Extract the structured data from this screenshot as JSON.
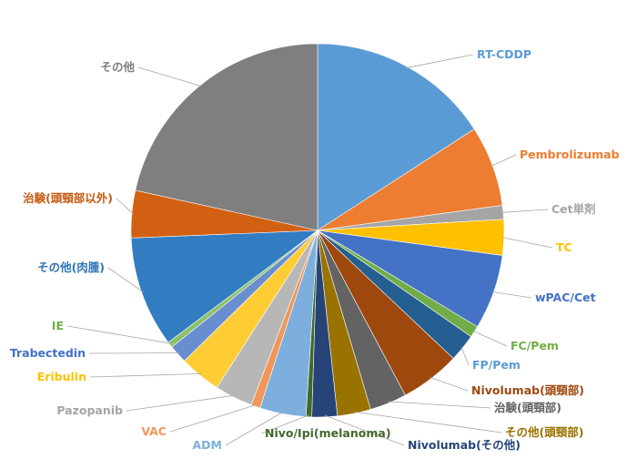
{
  "chart_data": {
    "type": "pie",
    "title": "",
    "legend": "none",
    "slices": [
      {
        "label": "RT-CDDP",
        "value": 15.9,
        "color": "#5b9bd5",
        "label_color": "#5b9bd5"
      },
      {
        "label": "Pembrolizumab",
        "value": 7.0,
        "color": "#ed7d31",
        "label_color": "#ed7d31"
      },
      {
        "label": "Cet単剤",
        "value": 1.2,
        "color": "#a5a5a5",
        "label_color": "#a5a5a5"
      },
      {
        "label": "TC",
        "value": 3.1,
        "color": "#ffc000",
        "label_color": "#ffc000"
      },
      {
        "label": "wPAC/Cet",
        "value": 6.5,
        "color": "#4472c4",
        "label_color": "#4472c4"
      },
      {
        "label": "FC/Pem",
        "value": 1.0,
        "color": "#70ad47",
        "label_color": "#70ad47"
      },
      {
        "label": "FP/Pem",
        "value": 2.4,
        "color": "#255e91",
        "label_color": "#5b9bd5"
      },
      {
        "label": "Nivolumab(頭頸部)",
        "value": 5.2,
        "color": "#9e480e",
        "label_color": "#9e480e"
      },
      {
        "label": "治験(頭頸部)",
        "value": 3.2,
        "color": "#636363",
        "label_color": "#636363"
      },
      {
        "label": "その他(頭頸部)",
        "value": 2.9,
        "color": "#997300",
        "label_color": "#997300"
      },
      {
        "label": "Nivolumab(その他)",
        "value": 2.2,
        "color": "#264478",
        "label_color": "#264478"
      },
      {
        "label": "Nivo/Ipi(melanoma)",
        "value": 0.5,
        "color": "#43682b",
        "label_color": "#43682b"
      },
      {
        "label": "ADM",
        "value": 4.0,
        "color": "#7cafdd",
        "label_color": "#7cafdd"
      },
      {
        "label": "VAC",
        "value": 0.8,
        "color": "#f1975a",
        "label_color": "#f1975a"
      },
      {
        "label": "Pazopanib",
        "value": 3.3,
        "color": "#b7b7b7",
        "label_color": "#a5a5a5"
      },
      {
        "label": "Eribulin",
        "value": 3.6,
        "color": "#ffcd33",
        "label_color": "#ffc000"
      },
      {
        "label": "Trabectedin",
        "value": 1.6,
        "color": "#698ed0",
        "label_color": "#4472c4"
      },
      {
        "label": "IE",
        "value": 0.5,
        "color": "#8cc168",
        "label_color": "#70ad47"
      },
      {
        "label": "その他(肉腫)",
        "value": 9.6,
        "color": "#327dc2",
        "label_color": "#2e75b6"
      },
      {
        "label": "治験(頭頸部以外)",
        "value": 4.1,
        "color": "#d26012",
        "label_color": "#c55a11"
      },
      {
        "label": "その他",
        "value": 21.6,
        "color": "#7f7f7f",
        "label_color": "#7f7f7f"
      }
    ]
  }
}
